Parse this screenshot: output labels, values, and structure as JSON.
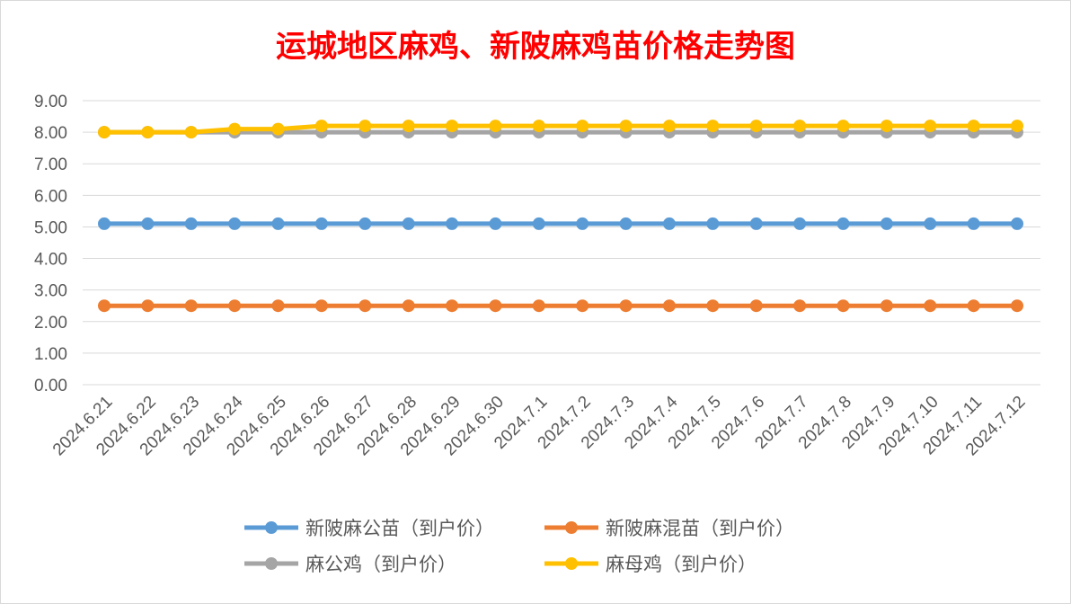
{
  "chart_data": {
    "type": "line",
    "title": "运城地区麻鸡、新陂麻鸡苗价格走势图",
    "xlabel": "",
    "ylabel": "",
    "ylim": [
      0,
      9
    ],
    "yticks": [
      "0.00",
      "1.00",
      "2.00",
      "3.00",
      "4.00",
      "5.00",
      "6.00",
      "7.00",
      "8.00",
      "9.00"
    ],
    "grid": true,
    "legend_position": "bottom",
    "categories": [
      "2024.6.21",
      "2024.6.22",
      "2024.6.23",
      "2024.6.24",
      "2024.6.25",
      "2024.6.26",
      "2024.6.27",
      "2024.6.28",
      "2024.6.29",
      "2024.6.30",
      "2024.7.1",
      "2024.7.2",
      "2024.7.3",
      "2024.7.4",
      "2024.7.5",
      "2024.7.6",
      "2024.7.7",
      "2024.7.8",
      "2024.7.9",
      "2024.7.10",
      "2024.7.11",
      "2024.7.12"
    ],
    "series": [
      {
        "name": "新陂麻公苗（到户价）",
        "color": "#5b9bd5",
        "values": [
          5.1,
          5.1,
          5.1,
          5.1,
          5.1,
          5.1,
          5.1,
          5.1,
          5.1,
          5.1,
          5.1,
          5.1,
          5.1,
          5.1,
          5.1,
          5.1,
          5.1,
          5.1,
          5.1,
          5.1,
          5.1,
          5.1
        ]
      },
      {
        "name": "新陂麻混苗（到户价）",
        "color": "#ed7d31",
        "values": [
          2.5,
          2.5,
          2.5,
          2.5,
          2.5,
          2.5,
          2.5,
          2.5,
          2.5,
          2.5,
          2.5,
          2.5,
          2.5,
          2.5,
          2.5,
          2.5,
          2.5,
          2.5,
          2.5,
          2.5,
          2.5,
          2.5
        ]
      },
      {
        "name": "麻公鸡（到户价）",
        "color": "#a5a5a5",
        "values": [
          8.0,
          8.0,
          8.0,
          8.0,
          8.0,
          8.0,
          8.0,
          8.0,
          8.0,
          8.0,
          8.0,
          8.0,
          8.0,
          8.0,
          8.0,
          8.0,
          8.0,
          8.0,
          8.0,
          8.0,
          8.0,
          8.0
        ]
      },
      {
        "name": "麻母鸡（到户价）",
        "color": "#ffc000",
        "values": [
          8.0,
          8.0,
          8.0,
          8.1,
          8.1,
          8.2,
          8.2,
          8.2,
          8.2,
          8.2,
          8.2,
          8.2,
          8.2,
          8.2,
          8.2,
          8.2,
          8.2,
          8.2,
          8.2,
          8.2,
          8.2,
          8.2
        ]
      }
    ]
  }
}
